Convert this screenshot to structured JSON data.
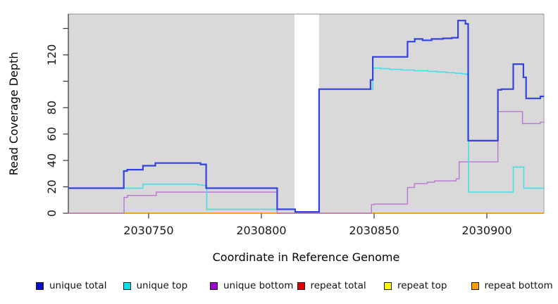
{
  "figure": {
    "page_background": "#ffffff"
  },
  "chart_data": {
    "type": "line",
    "subtype": "step-coverage",
    "title": "",
    "xlabel": "Coordinate in Reference Genome",
    "ylabel": "Read Coverage Depth",
    "panel_background": "#d9d9d9",
    "panel_border_top_color": "#a3a3a3",
    "panel_border_right_color": "#ababab",
    "panel_border_left_color": "#4d4d4d",
    "tick_color": "#333333",
    "grid": "off",
    "legend_position": "bottom",
    "xlim": [
      2030714.4,
      2030925.3
    ],
    "ylim": [
      0,
      150.9
    ],
    "x_ticks": [
      2030750,
      2030800,
      2030850,
      2030900
    ],
    "x_tick_labels": [
      "2030750",
      "2030800",
      "2030850",
      "2030900"
    ],
    "y_ticks": [
      0,
      20,
      40,
      60,
      80,
      100,
      120,
      140
    ],
    "y_tick_labels": [
      "0",
      "20",
      "40",
      "60",
      "80",
      "",
      "120",
      ""
    ],
    "no_data_gap_x": [
      2030814.7,
      2030825.6
    ],
    "draw_order": [
      "repeat total",
      "repeat top",
      "repeat bottom",
      "unique bottom",
      "unique top",
      "unique total"
    ],
    "series": [
      {
        "name": "unique total",
        "line_color": "#3342e0",
        "swatch_color": "#0b0bd0",
        "line_width": 2.2,
        "steps": [
          [
            2030714.4,
            19
          ],
          [
            2030739.0,
            32
          ],
          [
            2030740.5,
            33
          ],
          [
            2030747.5,
            36
          ],
          [
            2030753.0,
            38
          ],
          [
            2030773.0,
            37
          ],
          [
            2030775.5,
            19
          ],
          [
            2030807.0,
            3
          ],
          [
            2030815.0,
            1
          ],
          [
            2030825.6,
            94
          ],
          [
            2030848.4,
            101
          ],
          [
            2030849.4,
            118.5
          ],
          [
            2030864.8,
            130
          ],
          [
            2030868.0,
            132
          ],
          [
            2030871.5,
            131
          ],
          [
            2030875.5,
            132
          ],
          [
            2030880.5,
            132.5
          ],
          [
            2030884.5,
            133
          ],
          [
            2030887.2,
            146
          ],
          [
            2030890.5,
            143.5
          ],
          [
            2030891.7,
            55
          ],
          [
            2030904.9,
            93.5
          ],
          [
            2030906.5,
            94
          ],
          [
            2030911.7,
            113
          ],
          [
            2030916.2,
            103
          ],
          [
            2030917.4,
            87
          ],
          [
            2030923.7,
            88.5
          ]
        ]
      },
      {
        "name": "unique top",
        "line_color": "#45dee8",
        "swatch_color": "#00e1e6",
        "line_width": 1.6,
        "steps": [
          [
            2030714.4,
            19
          ],
          [
            2030747.5,
            22
          ],
          [
            2030771.9,
            21.5
          ],
          [
            2030773.8,
            21
          ],
          [
            2030775.8,
            3
          ],
          [
            2030815.0,
            1
          ],
          [
            2030825.6,
            94
          ],
          [
            2030849.4,
            110
          ],
          [
            2030853.0,
            109.5
          ],
          [
            2030857.0,
            109
          ],
          [
            2030862.0,
            108.5
          ],
          [
            2030868.0,
            108
          ],
          [
            2030874.0,
            107.5
          ],
          [
            2030878.0,
            107
          ],
          [
            2030882.0,
            106.5
          ],
          [
            2030886.0,
            106
          ],
          [
            2030889.0,
            105.5
          ],
          [
            2030891.0,
            105
          ],
          [
            2030891.9,
            16
          ],
          [
            2030911.7,
            35
          ],
          [
            2030916.4,
            19
          ]
        ]
      },
      {
        "name": "unique bottom",
        "line_color": "#bb76d4",
        "swatch_color": "#9a05cb",
        "line_width": 1.4,
        "steps": [
          [
            2030714.4,
            0
          ],
          [
            2030739.1,
            12
          ],
          [
            2030740.6,
            13.5
          ],
          [
            2030753.4,
            16
          ],
          [
            2030807.0,
            0
          ],
          [
            2030848.8,
            6.5
          ],
          [
            2030850.0,
            7
          ],
          [
            2030864.8,
            19.5
          ],
          [
            2030867.9,
            22.5
          ],
          [
            2030873.6,
            23.5
          ],
          [
            2030876.8,
            24.5
          ],
          [
            2030886.4,
            26
          ],
          [
            2030887.7,
            39
          ],
          [
            2030904.9,
            77
          ],
          [
            2030915.8,
            68
          ],
          [
            2030923.7,
            69
          ]
        ]
      },
      {
        "name": "repeat total",
        "line_color": "#de1e1e",
        "swatch_color": "#e00000",
        "line_width": 1.4,
        "steps": [
          [
            2030714.4,
            0
          ]
        ]
      },
      {
        "name": "repeat top",
        "line_color": "#f5f500",
        "swatch_color": "#fdfd00",
        "line_width": 1.4,
        "steps": [
          [
            2030714.4,
            0
          ]
        ]
      },
      {
        "name": "repeat bottom",
        "line_color": "#ff9e1b",
        "swatch_color": "#ff9d00",
        "line_width": 1.8,
        "steps": [
          [
            2030714.4,
            0
          ]
        ]
      }
    ],
    "legend": [
      {
        "label": "unique total",
        "swatch_color": "#0b0bd0"
      },
      {
        "label": "unique top",
        "swatch_color": "#00e1e6"
      },
      {
        "label": "unique bottom",
        "swatch_color": "#9a05cb"
      },
      {
        "label": "repeat total",
        "swatch_color": "#e00000"
      },
      {
        "label": "repeat top",
        "swatch_color": "#fdfd00"
      },
      {
        "label": "repeat bottom",
        "swatch_color": "#ff9d00"
      }
    ]
  }
}
